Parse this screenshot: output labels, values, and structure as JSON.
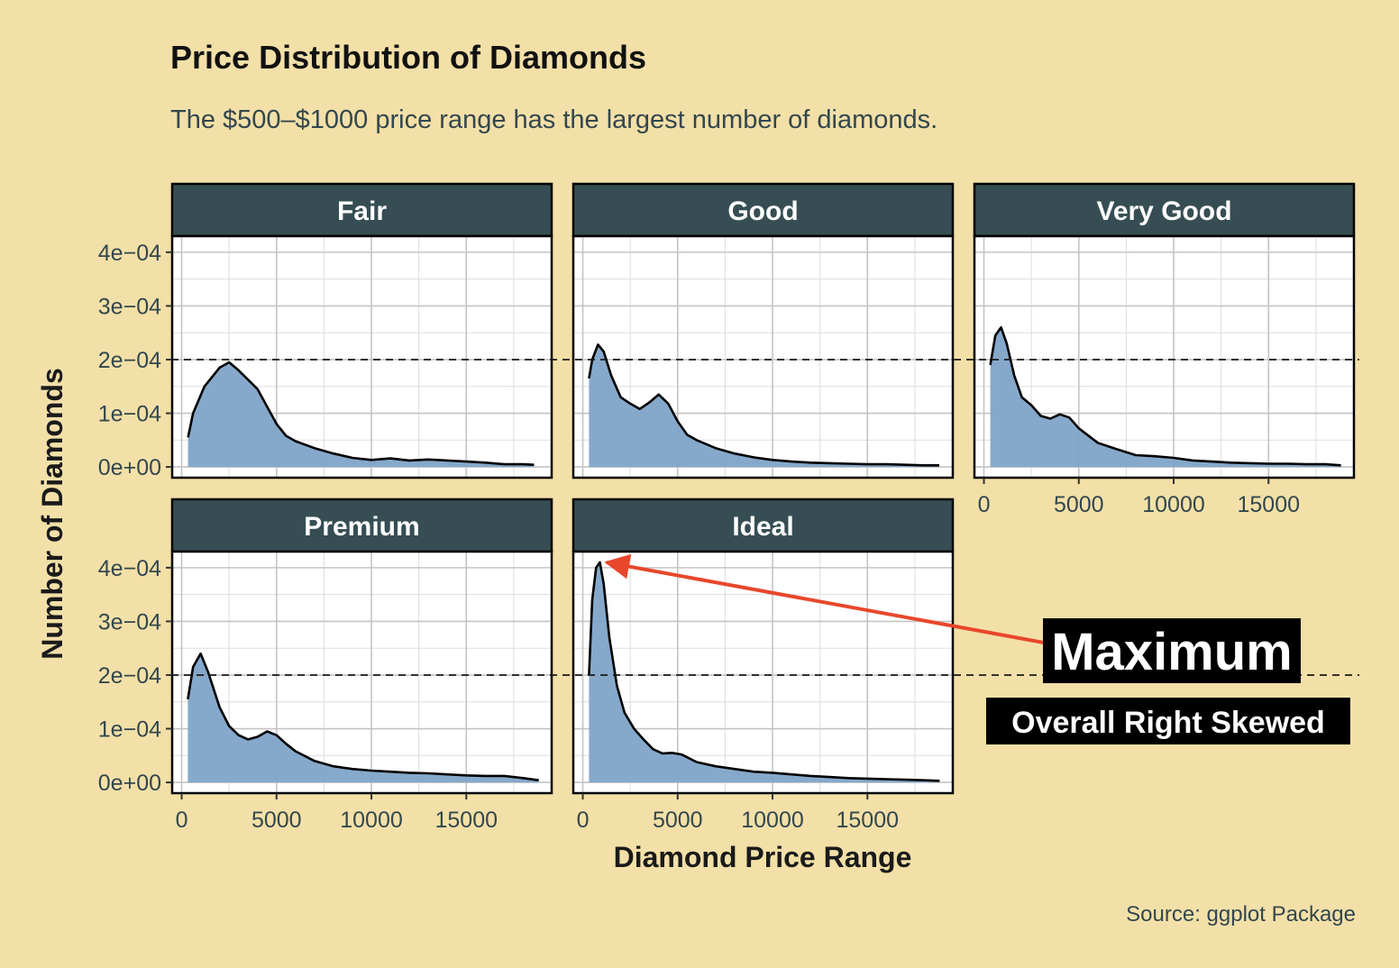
{
  "title": "Price Distribution of Diamonds",
  "subtitle": "The $500–$1000 price range has the largest number of diamonds.",
  "caption": "Source: ggplot Package",
  "annotations": {
    "maximum": "Maximum",
    "skew": "Overall Right Skewed"
  },
  "colors": {
    "background": "#F3E0A8",
    "strip": "#364E53",
    "fill": "#7FA4C8",
    "arrow": "#E8472B",
    "reference_line": "#1A1A1A"
  },
  "chart_data": {
    "type": "area",
    "xlabel": "Diamond Price Range",
    "ylabel": "Number of Diamonds",
    "xlim": [
      -500,
      19500
    ],
    "ylim": [
      -2e-05,
      0.00043
    ],
    "x_ticks": [
      0,
      5000,
      10000,
      15000
    ],
    "x_tick_labels": [
      "0",
      "5000",
      "10000",
      "15000"
    ],
    "y_ticks": [
      0,
      0.0001,
      0.0002,
      0.0003,
      0.0004
    ],
    "y_tick_labels": [
      "0e+00",
      "1e−04",
      "2e−04",
      "3e−04",
      "4e−04"
    ],
    "reference_line_y": 0.0002,
    "grid": true,
    "panels": [
      {
        "name": "Fair",
        "x": [
          337,
          600,
          1200,
          2000,
          2500,
          3000,
          4000,
          5000,
          5500,
          6000,
          7000,
          8000,
          9000,
          10000,
          11000,
          12000,
          13000,
          14000,
          15000,
          16000,
          17000,
          18000,
          18574
        ],
        "y": [
          5.5e-05,
          0.0001,
          0.00015,
          0.000185,
          0.000195,
          0.00018,
          0.000145,
          8e-05,
          5.8e-05,
          4.8e-05,
          3.5e-05,
          2.5e-05,
          1.7e-05,
          1.3e-05,
          1.6e-05,
          1.2e-05,
          1.4e-05,
          1.2e-05,
          1e-05,
          8e-06,
          5e-06,
          5e-06,
          4e-06
        ]
      },
      {
        "name": "Good",
        "x": [
          327,
          500,
          800,
          1100,
          1500,
          2000,
          2500,
          3000,
          3500,
          4000,
          4500,
          5000,
          5500,
          6000,
          7000,
          8000,
          9000,
          10000,
          11000,
          12000,
          13000,
          14000,
          15000,
          16000,
          17000,
          18000,
          18788
        ],
        "y": [
          0.000165,
          0.0002,
          0.000228,
          0.000215,
          0.00017,
          0.00013,
          0.000118,
          0.000108,
          0.00012,
          0.000135,
          0.000118,
          8.5e-05,
          6e-05,
          5e-05,
          3.5e-05,
          2.5e-05,
          1.8e-05,
          1.3e-05,
          1e-05,
          8e-06,
          7e-06,
          6e-06,
          5e-06,
          5e-06,
          4e-06,
          3e-06,
          3e-06
        ]
      },
      {
        "name": "Very Good",
        "x": [
          336,
          600,
          900,
          1200,
          1600,
          2000,
          2500,
          3000,
          3500,
          4000,
          4500,
          5000,
          6000,
          7000,
          8000,
          9000,
          10000,
          11000,
          12000,
          13000,
          14000,
          15000,
          16000,
          17000,
          18000,
          18818
        ],
        "y": [
          0.00019,
          0.000245,
          0.00026,
          0.00023,
          0.00017,
          0.00013,
          0.000115,
          9.5e-05,
          9e-05,
          9.8e-05,
          9.2e-05,
          7.2e-05,
          4.5e-05,
          3.3e-05,
          2.2e-05,
          2e-05,
          1.7e-05,
          1.2e-05,
          1e-05,
          8e-06,
          7e-06,
          6e-06,
          6e-06,
          5e-06,
          5e-06,
          3e-06
        ]
      },
      {
        "name": "Premium",
        "x": [
          326,
          600,
          1000,
          1400,
          2000,
          2500,
          3000,
          3500,
          4000,
          4500,
          5000,
          5500,
          6000,
          7000,
          8000,
          9000,
          10000,
          11000,
          12000,
          13000,
          14000,
          15000,
          16000,
          17000,
          18000,
          18823
        ],
        "y": [
          0.000155,
          0.000215,
          0.00024,
          0.000205,
          0.00014,
          0.000105,
          8.8e-05,
          8e-05,
          8.5e-05,
          9.5e-05,
          8.8e-05,
          7.2e-05,
          5.8e-05,
          4e-05,
          3e-05,
          2.5e-05,
          2.2e-05,
          2e-05,
          1.8e-05,
          1.7e-05,
          1.5e-05,
          1.3e-05,
          1.2e-05,
          1.2e-05,
          8e-06,
          4e-06
        ]
      },
      {
        "name": "Ideal",
        "x": [
          326,
          500,
          700,
          900,
          1100,
          1400,
          1800,
          2200,
          2700,
          3200,
          3700,
          4200,
          4700,
          5200,
          6000,
          7000,
          8000,
          9000,
          10000,
          11000,
          12000,
          13000,
          14000,
          15000,
          16000,
          17000,
          18000,
          18806
        ],
        "y": [
          0.0002,
          0.00034,
          0.0004,
          0.00041,
          0.00037,
          0.00027,
          0.00018,
          0.00013,
          0.0001,
          8e-05,
          6.2e-05,
          5.4e-05,
          5.5e-05,
          5.2e-05,
          3.8e-05,
          3e-05,
          2.5e-05,
          2e-05,
          1.8e-05,
          1.5e-05,
          1.2e-05,
          1e-05,
          8e-06,
          7e-06,
          6e-06,
          5e-06,
          4e-06,
          3e-06
        ]
      }
    ]
  }
}
